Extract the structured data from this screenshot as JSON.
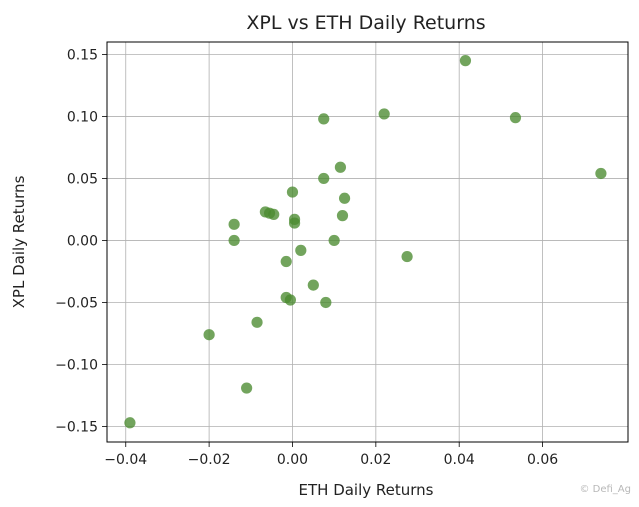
{
  "chart_data": {
    "type": "scatter",
    "title": "XPL vs ETH Daily Returns",
    "xlabel": "ETH Daily Returns",
    "ylabel": "XPL Daily Returns",
    "xlim": [
      -0.0445,
      0.0805
    ],
    "ylim": [
      -0.1625,
      0.16
    ],
    "xticks": [
      -0.04,
      -0.02,
      0.0,
      0.02,
      0.04,
      0.06
    ],
    "xtick_labels": [
      "−0.04",
      "−0.02",
      "0.00",
      "0.02",
      "0.04",
      "0.06"
    ],
    "yticks": [
      0.15,
      0.1,
      0.05,
      0.0,
      -0.05,
      -0.1,
      -0.15
    ],
    "ytick_labels": [
      "0.15",
      "0.10",
      "0.05",
      "0.00",
      "−0.05",
      "−0.10",
      "−0.15"
    ],
    "grid": true,
    "marker_color": "#4a8a2f",
    "series": [
      {
        "points": [
          {
            "x": -0.039,
            "y": -0.147
          },
          {
            "x": -0.02,
            "y": -0.076
          },
          {
            "x": -0.011,
            "y": -0.119
          },
          {
            "x": -0.0085,
            "y": -0.066
          },
          {
            "x": -0.014,
            "y": 0.013
          },
          {
            "x": -0.014,
            "y": 0.0
          },
          {
            "x": -0.0065,
            "y": 0.023
          },
          {
            "x": -0.0055,
            "y": 0.022
          },
          {
            "x": -0.0045,
            "y": 0.021
          },
          {
            "x": -0.0015,
            "y": -0.017
          },
          {
            "x": -0.0015,
            "y": -0.046
          },
          {
            "x": -0.0005,
            "y": -0.048
          },
          {
            "x": 0.0,
            "y": 0.039
          },
          {
            "x": 0.0005,
            "y": 0.017
          },
          {
            "x": 0.0005,
            "y": 0.014
          },
          {
            "x": 0.002,
            "y": -0.008
          },
          {
            "x": 0.005,
            "y": -0.036
          },
          {
            "x": 0.0075,
            "y": 0.098
          },
          {
            "x": 0.0075,
            "y": 0.05
          },
          {
            "x": 0.008,
            "y": -0.05
          },
          {
            "x": 0.01,
            "y": 0.0
          },
          {
            "x": 0.0115,
            "y": 0.059
          },
          {
            "x": 0.012,
            "y": 0.02
          },
          {
            "x": 0.0125,
            "y": 0.034
          },
          {
            "x": 0.022,
            "y": 0.102
          },
          {
            "x": 0.0275,
            "y": -0.013
          },
          {
            "x": 0.0415,
            "y": 0.145
          },
          {
            "x": 0.0535,
            "y": 0.099
          },
          {
            "x": 0.074,
            "y": 0.054
          }
        ]
      }
    ]
  },
  "watermark": "© Defi_Ag"
}
